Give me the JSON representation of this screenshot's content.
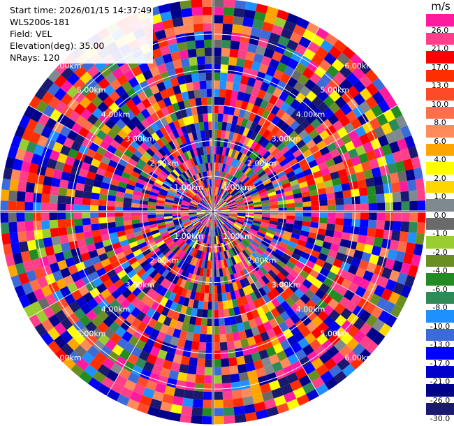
{
  "header": {
    "start_time": "Start time: 2026/01/15 14:37:49",
    "instrument": "WLS200s-181",
    "field": "Field: VEL",
    "elevation": "Elevation(deg): 35.00",
    "nrays": "NRays: 120"
  },
  "colorbar": {
    "unit": "m/s",
    "ticks": [
      "26.0",
      "21.0",
      "17.0",
      "13.0",
      "10.0",
      "8.0",
      "6.0",
      "4.0",
      "2.0",
      "1.0",
      "0.0",
      "-1.0",
      "-2.0",
      "-4.0",
      "-6.0",
      "-8.0",
      "-10.0",
      "-13.0",
      "-17.0",
      "-21.0",
      "-26.0",
      "-30.0"
    ],
    "bins": [
      {
        "lo": 26,
        "hi": 30,
        "color": "#ff1aa0"
      },
      {
        "lo": 21,
        "hi": 26,
        "color": "#ff3f8a"
      },
      {
        "lo": 17,
        "hi": 21,
        "color": "#ff0000"
      },
      {
        "lo": 13,
        "hi": 17,
        "color": "#ff2e00"
      },
      {
        "lo": 10,
        "hi": 13,
        "color": "#ff4a2a"
      },
      {
        "lo": 8,
        "hi": 10,
        "color": "#ff6f4a"
      },
      {
        "lo": 6,
        "hi": 8,
        "color": "#ff8a5a"
      },
      {
        "lo": 4,
        "hi": 6,
        "color": "#ffa500"
      },
      {
        "lo": 2,
        "hi": 4,
        "color": "#ffff00"
      },
      {
        "lo": 1,
        "hi": 2,
        "color": "#ffd700"
      },
      {
        "lo": 0,
        "hi": 1,
        "color": "#7f8a8f"
      },
      {
        "lo": -1,
        "hi": 0,
        "color": "#6a6a6a"
      },
      {
        "lo": -2,
        "hi": -1,
        "color": "#9acd32"
      },
      {
        "lo": -4,
        "hi": -2,
        "color": "#6b8e23"
      },
      {
        "lo": -6,
        "hi": -4,
        "color": "#228b22"
      },
      {
        "lo": -8,
        "hi": -6,
        "color": "#2e8b57"
      },
      {
        "lo": -10,
        "hi": -8,
        "color": "#1e90ff"
      },
      {
        "lo": -13,
        "hi": -10,
        "color": "#3c6bd8"
      },
      {
        "lo": -17,
        "hi": -13,
        "color": "#0000ff"
      },
      {
        "lo": -21,
        "hi": -17,
        "color": "#0000cd"
      },
      {
        "lo": -26,
        "hi": -21,
        "color": "#00008b"
      },
      {
        "lo": -30,
        "hi": -26,
        "color": "#191970"
      }
    ]
  },
  "chart_data": {
    "type": "heatmap",
    "projection": "polar PPI",
    "field": "VEL",
    "nrays": 120,
    "range_gates": 26,
    "range_rings_km": [
      {
        "range_km": 1.0,
        "label": "1.00km"
      },
      {
        "range_km": 2.0,
        "label": "2.00km"
      },
      {
        "range_km": 3.0,
        "label": "3.00km"
      },
      {
        "range_km": 4.0,
        "label": "4.00km"
      },
      {
        "range_km": 5.0,
        "label": "5.00km"
      },
      {
        "range_km": 6.0,
        "label": "6.00km"
      }
    ],
    "max_range_km": 6.0,
    "vmin": -30,
    "vmax": 30,
    "note_values": "values appear as random noise across the full color scale (-30 to 30 m/s)"
  }
}
